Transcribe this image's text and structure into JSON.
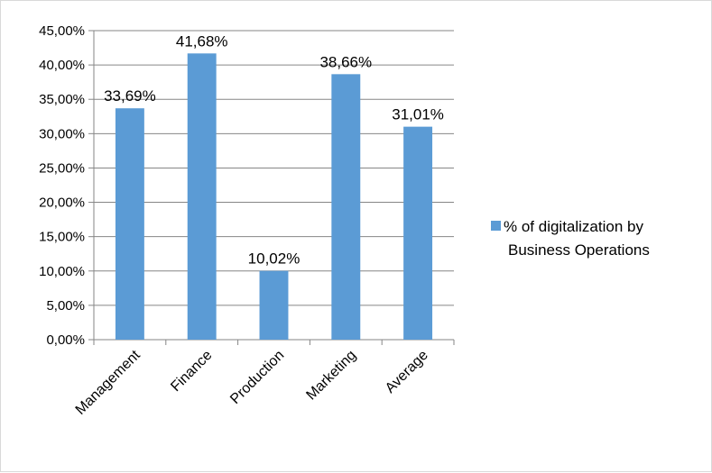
{
  "chart_data": {
    "type": "bar",
    "categories": [
      "Management",
      "Finance",
      "Production",
      "Marketing",
      "Average"
    ],
    "series": [
      {
        "name": "% of digitalization by Business Operations",
        "values": [
          33.69,
          41.68,
          10.02,
          38.66,
          31.01
        ],
        "value_labels": [
          "33,69%",
          "41,68%",
          "10,02%",
          "38,66%",
          "31,01%"
        ],
        "color": "#5b9bd5"
      }
    ],
    "ylim": [
      0,
      45
    ],
    "y_ticks": [
      0,
      5,
      10,
      15,
      20,
      25,
      30,
      35,
      40,
      45
    ],
    "y_tick_labels": [
      "0,00%",
      "5,00%",
      "10,00%",
      "15,00%",
      "20,00%",
      "25,00%",
      "30,00%",
      "35,00%",
      "40,00%",
      "45,00%"
    ],
    "grid": true,
    "legend_position": "right"
  },
  "legend": {
    "line1": "% of digitalization by",
    "line2": "Business Operations"
  }
}
